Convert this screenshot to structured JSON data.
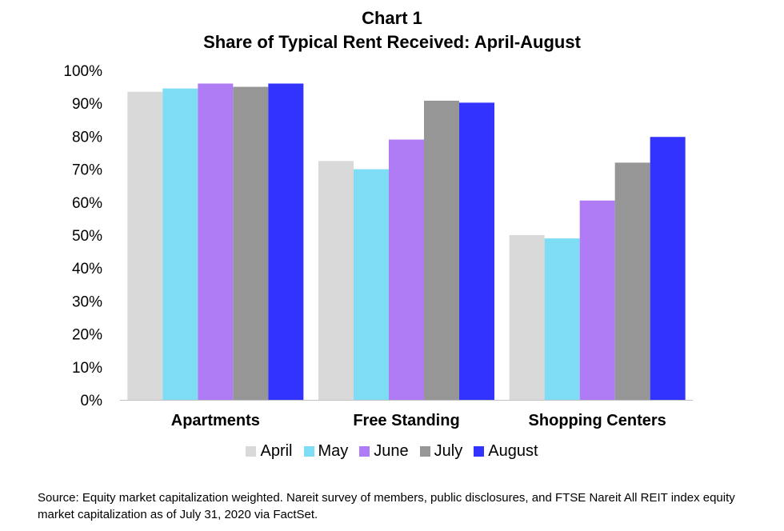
{
  "chart_data": {
    "type": "bar",
    "title": "Chart 1",
    "subtitle": "Share of Typical Rent Received: April-August",
    "categories": [
      "Apartments",
      "Free Standing",
      "Shopping Centers"
    ],
    "series": [
      {
        "name": "April",
        "color": "#d9d9d9",
        "values": [
          93.5,
          72.5,
          50
        ]
      },
      {
        "name": "May",
        "color": "#7fdcf5",
        "values": [
          94.5,
          70,
          49
        ]
      },
      {
        "name": "June",
        "color": "#b07cf5",
        "values": [
          96,
          79,
          60.5
        ]
      },
      {
        "name": "July",
        "color": "#969696",
        "values": [
          95,
          90.8,
          72
        ]
      },
      {
        "name": "August",
        "color": "#3333ff",
        "values": [
          96,
          90.2,
          79.8
        ]
      }
    ],
    "ylim": [
      0,
      100
    ],
    "yticks": [
      "0%",
      "10%",
      "20%",
      "30%",
      "40%",
      "50%",
      "60%",
      "70%",
      "80%",
      "90%",
      "100%"
    ],
    "grid": false,
    "legend_position": "bottom",
    "source": "Source: Equity market capitalization weighted. Nareit survey of members, public disclosures, and FTSE Nareit All REIT index equity market capitalization as of July 31, 2020 via FactSet."
  }
}
